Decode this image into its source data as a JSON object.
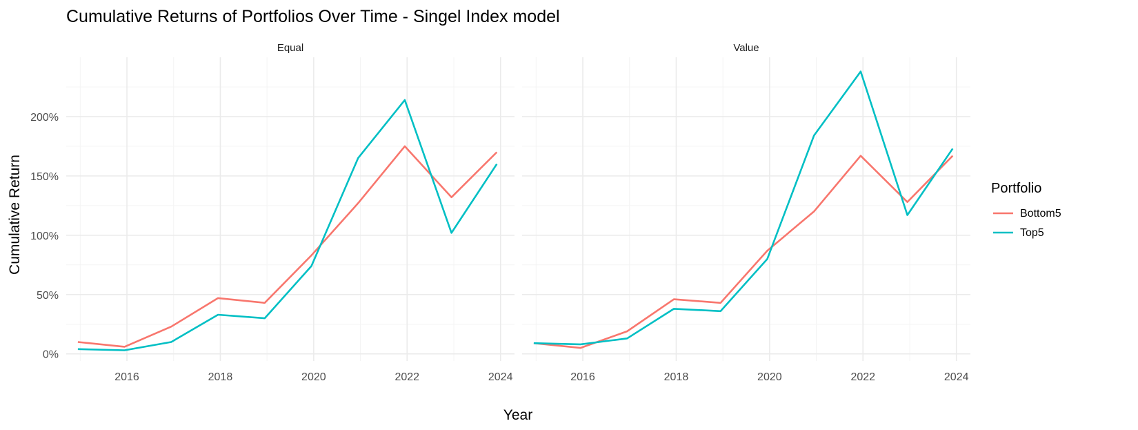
{
  "chart_data": {
    "type": "line",
    "title": "Cumulative Returns of Portfolios Over Time - Singel Index model",
    "xlabel": "Year",
    "ylabel": "Cumulative Return",
    "xlim": [
      2014.7,
      2024.3
    ],
    "ylim": [
      -0.06,
      2.5
    ],
    "x_ticks": [
      2016,
      2018,
      2020,
      2022,
      2024
    ],
    "y_ticks": [
      0,
      0.5,
      1.0,
      1.5,
      2.0
    ],
    "y_tick_labels": [
      "0%",
      "50%",
      "100%",
      "150%",
      "200%"
    ],
    "grid": true,
    "legend": {
      "title": "Portfolio",
      "position": "right",
      "entries": [
        {
          "name": "Bottom5",
          "color": "#F8766D"
        },
        {
          "name": "Top5",
          "color": "#00BFC4"
        }
      ]
    },
    "panels": [
      {
        "name": "Equal",
        "series": [
          {
            "name": "Bottom5",
            "color": "#F8766D",
            "x": [
              2014.95,
              2015.95,
              2016.95,
              2017.95,
              2018.95,
              2019.95,
              2020.95,
              2021.95,
              2022.95,
              2023.92
            ],
            "y": [
              0.1,
              0.06,
              0.23,
              0.47,
              0.43,
              0.83,
              1.27,
              1.75,
              1.32,
              1.7
            ]
          },
          {
            "name": "Top5",
            "color": "#00BFC4",
            "x": [
              2014.95,
              2015.95,
              2016.95,
              2017.95,
              2018.95,
              2019.95,
              2020.95,
              2021.95,
              2022.95,
              2023.92
            ],
            "y": [
              0.04,
              0.03,
              0.1,
              0.33,
              0.3,
              0.74,
              1.65,
              2.14,
              1.02,
              1.6
            ]
          }
        ]
      },
      {
        "name": "Value",
        "series": [
          {
            "name": "Bottom5",
            "color": "#F8766D",
            "x": [
              2014.95,
              2015.95,
              2016.95,
              2017.95,
              2018.95,
              2019.95,
              2020.95,
              2021.95,
              2022.95,
              2023.92
            ],
            "y": [
              0.09,
              0.05,
              0.19,
              0.46,
              0.43,
              0.87,
              1.2,
              1.67,
              1.28,
              1.67
            ]
          },
          {
            "name": "Top5",
            "color": "#00BFC4",
            "x": [
              2014.95,
              2015.95,
              2016.95,
              2017.95,
              2018.95,
              2019.95,
              2020.95,
              2021.95,
              2022.95,
              2023.92
            ],
            "y": [
              0.09,
              0.08,
              0.13,
              0.38,
              0.36,
              0.8,
              1.84,
              2.38,
              1.17,
              1.73
            ]
          }
        ]
      }
    ]
  }
}
